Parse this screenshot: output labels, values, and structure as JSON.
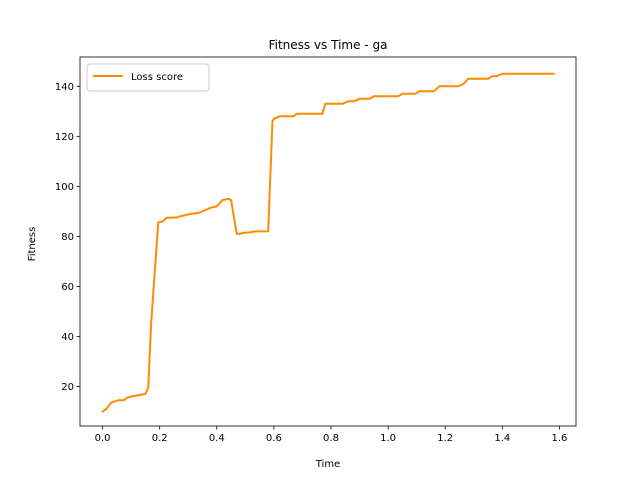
{
  "chart_data": {
    "type": "line",
    "title": "Fitness vs Time - ga",
    "xlabel": "Time",
    "ylabel": "Fitness",
    "xlim": [
      -0.079,
      1.658
    ],
    "ylim": [
      4.2,
      151.7
    ],
    "xticks": [
      0.0,
      0.2,
      0.4,
      0.6,
      0.8,
      1.0,
      1.2,
      1.4,
      1.6
    ],
    "xtick_labels": [
      "0.0",
      "0.2",
      "0.4",
      "0.6",
      "0.8",
      "1.0",
      "1.2",
      "1.4",
      "1.6"
    ],
    "yticks": [
      20,
      40,
      60,
      80,
      100,
      120,
      140
    ],
    "ytick_labels": [
      "20",
      "40",
      "60",
      "80",
      "100",
      "120",
      "140"
    ],
    "grid": false,
    "legend_position": "top-left",
    "series": [
      {
        "name": "Loss score",
        "color": "#ff8c00",
        "x": [
          0.0,
          0.013,
          0.03,
          0.055,
          0.075,
          0.085,
          0.1,
          0.125,
          0.15,
          0.16,
          0.17,
          0.195,
          0.21,
          0.225,
          0.26,
          0.27,
          0.31,
          0.34,
          0.36,
          0.38,
          0.4,
          0.42,
          0.44,
          0.45,
          0.47,
          0.48,
          0.5,
          0.51,
          0.535,
          0.55,
          0.58,
          0.595,
          0.6,
          0.62,
          0.67,
          0.68,
          0.77,
          0.78,
          0.84,
          0.86,
          0.88,
          0.9,
          0.935,
          0.95,
          1.035,
          1.05,
          1.095,
          1.11,
          1.16,
          1.18,
          1.245,
          1.265,
          1.28,
          1.3,
          1.35,
          1.365,
          1.38,
          1.4,
          1.58
        ],
        "y": [
          10,
          11,
          13.5,
          14.5,
          14.5,
          15.5,
          16,
          16.5,
          17,
          19.5,
          45,
          85.5,
          86,
          87.5,
          87.5,
          88,
          89,
          89.5,
          90.5,
          91.5,
          92,
          94.5,
          95,
          94.5,
          81,
          81,
          81.5,
          81.5,
          82,
          82,
          82,
          126,
          127,
          128,
          128,
          129,
          129,
          133,
          133,
          134,
          134,
          135,
          135,
          136,
          136,
          137,
          137,
          138,
          138,
          140,
          140,
          141,
          143,
          143,
          143,
          144,
          144,
          145,
          145
        ]
      }
    ]
  }
}
